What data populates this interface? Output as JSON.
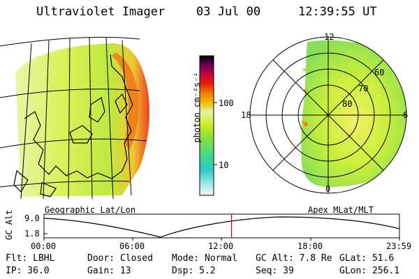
{
  "header": {
    "title": "Ultraviolet Imager",
    "date": "03 Jul 00",
    "time": "12:39:55 UT"
  },
  "geo_panel": {
    "label": "Geographic Lat/Lon"
  },
  "polar_panel": {
    "label": "Apex MLat/MLT",
    "mlt_labels": {
      "top": "12",
      "left": "18",
      "right": "6",
      "bottom": "0"
    },
    "lat_labels": [
      "60",
      "70",
      "80"
    ]
  },
  "colorbar": {
    "unit_label": "photon cm⁻²s⁻¹",
    "tick_labels": [
      "100",
      "10"
    ],
    "colors": [
      "#e8e8e8",
      "#6fd6d6",
      "#30c8c8",
      "#60e070",
      "#a8ec30",
      "#e8f020",
      "#f8f080",
      "#f0a000",
      "#e02000",
      "#c80030",
      "#900050",
      "#400040",
      "#000000"
    ]
  },
  "altitude_plot": {
    "ylabel": "GC Alt",
    "y_ticks": [
      "9.0",
      "1.8"
    ],
    "x_ticks": [
      "00:00",
      "06:00",
      "12:00",
      "18:00",
      "23:59"
    ],
    "current_time_hours": 12.665,
    "marker_color": "#d40000"
  },
  "info": {
    "flt": "Flt: LBHL",
    "door": "Door: Closed",
    "mode": "Mode: Normal",
    "gc_alt": "GC Alt: 7.8 Re",
    "glat": "GLat:  51.6",
    "ip": "IP: 36.0",
    "gain": "Gain: 13",
    "dsp": "Dsp:    5.2",
    "seq": "Seq: 39",
    "glon": "GLon: 256.1"
  }
}
